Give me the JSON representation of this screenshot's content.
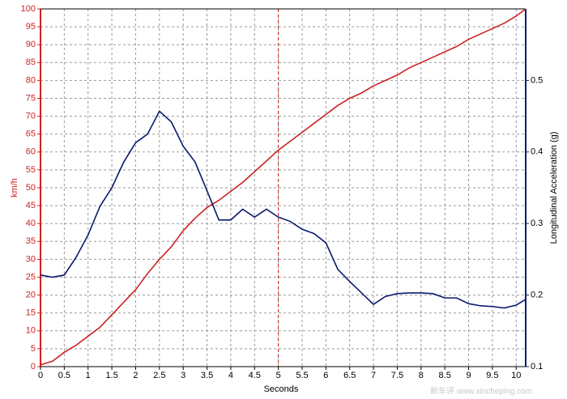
{
  "chart_data": {
    "type": "line",
    "xlabel": "Seconds",
    "ylabel": "km/h",
    "y2label": "Longitudinal Acceleration (g)",
    "x": [
      0,
      0.25,
      0.5,
      0.75,
      1,
      1.25,
      1.5,
      1.75,
      2,
      2.25,
      2.5,
      2.75,
      3,
      3.25,
      3.5,
      3.75,
      4,
      4.25,
      4.5,
      4.75,
      5,
      5.25,
      5.5,
      5.75,
      6,
      6.25,
      6.5,
      6.75,
      7,
      7.25,
      7.5,
      7.75,
      8,
      8.25,
      8.5,
      8.75,
      9,
      9.25,
      9.5,
      9.75,
      10,
      10.2
    ],
    "series": [
      {
        "name": "km/h",
        "color": "#cc2222",
        "values": [
          0.5,
          1.5,
          4,
          6,
          8.5,
          11,
          14.5,
          18,
          21.5,
          26,
          30,
          33.5,
          38,
          41.5,
          44.5,
          46.5,
          49,
          51.5,
          54.5,
          57.5,
          60.5,
          63,
          65.5,
          68,
          70.5,
          73,
          75,
          76.5,
          78.5,
          80,
          81.5,
          83.5,
          85,
          86.5,
          88,
          89.5,
          91.5,
          93,
          94.5,
          96,
          98,
          100
        ]
      },
      {
        "name": "Longitudinal Acceleration (g)",
        "color": "#0a1a6e",
        "axis": "y2",
        "values": [
          0.228,
          0.225,
          0.228,
          0.253,
          0.284,
          0.324,
          0.35,
          0.386,
          0.413,
          0.425,
          0.457,
          0.442,
          0.408,
          0.386,
          0.346,
          0.305,
          0.305,
          0.32,
          0.309,
          0.32,
          0.309,
          0.303,
          0.292,
          0.286,
          0.273,
          0.236,
          0.219,
          0.203,
          0.187,
          0.198,
          0.202,
          0.203,
          0.203,
          0.202,
          0.196,
          0.196,
          0.188,
          0.185,
          0.184,
          0.182,
          0.186,
          0.194
        ]
      }
    ],
    "xlim": [
      0,
      10.2
    ],
    "xticks": [
      0,
      0.5,
      1,
      1.5,
      2,
      2.5,
      3,
      3.5,
      4,
      4.5,
      5,
      5.5,
      6,
      6.5,
      7,
      7.5,
      8,
      8.5,
      9,
      9.5,
      10
    ],
    "ylim": [
      0,
      100
    ],
    "yticks": [
      0,
      5,
      10,
      15,
      20,
      25,
      30,
      35,
      40,
      45,
      50,
      55,
      60,
      65,
      70,
      75,
      80,
      85,
      90,
      95,
      100
    ],
    "y2lim": [
      0.1,
      0.6
    ],
    "y2ticks": [
      0.1,
      0.2,
      0.3,
      0.4,
      0.5
    ],
    "grid": true,
    "marker_x": 5,
    "marker_color": "#cc2222",
    "watermark": "新车评 www.xincheping.com"
  }
}
